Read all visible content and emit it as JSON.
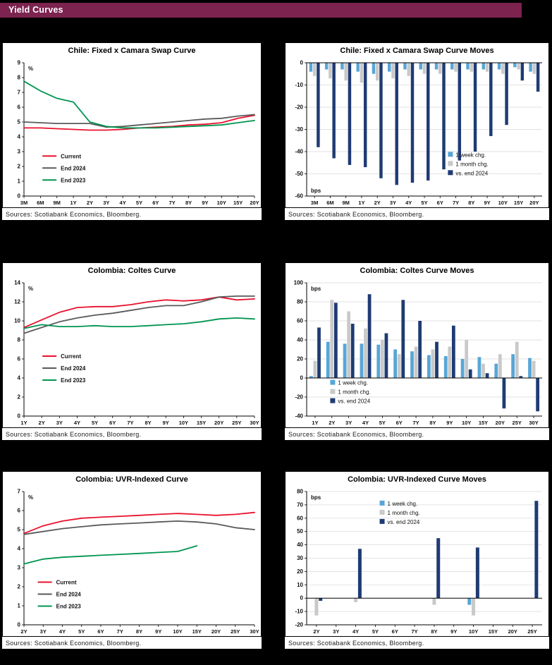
{
  "page": {
    "title": "Yield Curves",
    "header_bg": "#7c2350",
    "page_bg": "#000000"
  },
  "sources_label": "Sources: Scotiabank Economics, Bloomberg.",
  "colors": {
    "current": "#e8112d",
    "end2024": "#595a5c",
    "end2023": "#009450",
    "week": "#58a6d6",
    "month": "#c9c9c9",
    "vs_end2024": "#1f3b73",
    "grid": "#d9d9d9"
  },
  "chart_data": [
    {
      "type": "line",
      "title": "Chile: Fixed x Camara Swap Curve",
      "unit": "%",
      "unit_pos": "top",
      "ylim": [
        0,
        9
      ],
      "ystep": 1,
      "categories": [
        "3M",
        "6M",
        "9M",
        "1Y",
        "2Y",
        "3Y",
        "4Y",
        "5Y",
        "6Y",
        "7Y",
        "8Y",
        "9Y",
        "10Y",
        "15Y",
        "20Y"
      ],
      "legend": {
        "x": 0.08,
        "y": 0.7
      },
      "series": [
        {
          "name": "Current",
          "color_key": "current",
          "values": [
            4.6,
            4.6,
            4.55,
            4.5,
            4.45,
            4.45,
            4.5,
            4.6,
            4.65,
            4.7,
            4.8,
            4.85,
            4.95,
            5.25,
            5.45
          ]
        },
        {
          "name": "End 2024",
          "color_key": "end2024",
          "values": [
            5.0,
            4.95,
            4.9,
            4.9,
            4.9,
            4.65,
            4.7,
            4.8,
            4.9,
            5.0,
            5.1,
            5.2,
            5.25,
            5.4,
            5.5
          ]
        },
        {
          "name": "End 2023",
          "color_key": "end2023",
          "values": [
            7.75,
            7.1,
            6.6,
            6.35,
            5.0,
            4.7,
            4.6,
            4.6,
            4.6,
            4.65,
            4.7,
            4.75,
            4.8,
            4.95,
            5.1
          ]
        }
      ]
    },
    {
      "type": "bar",
      "title": "Chile: Fixed x Camara Swap Curve Moves",
      "unit": "bps",
      "unit_pos": "bottom",
      "ylim": [
        -60,
        0
      ],
      "ystep": 10,
      "categories": [
        "3M",
        "6M",
        "9M",
        "1Y",
        "2Y",
        "3Y",
        "4Y",
        "5Y",
        "6Y",
        "7Y",
        "8Y",
        "9Y",
        "10Y",
        "15Y",
        "20Y"
      ],
      "legend": {
        "x": 0.6,
        "y": 0.7
      },
      "series": [
        {
          "name": "1 week chg.",
          "color_key": "week",
          "values": [
            -4,
            -3,
            -3,
            -4,
            -5,
            -4,
            -3,
            -3,
            -3,
            -3,
            -3,
            -3,
            -3,
            -2,
            -4
          ]
        },
        {
          "name": "1 month chg.",
          "color_key": "month",
          "values": [
            -6,
            -7,
            -8,
            -9,
            -8,
            -7,
            -6,
            -5,
            -5,
            -4,
            -4,
            -4,
            -5,
            -3,
            -5
          ]
        },
        {
          "name": "vs. end 2024",
          "color_key": "vs_end2024",
          "values": [
            -38,
            -43,
            -46,
            -47,
            -52,
            -55,
            -54,
            -53,
            -48,
            -44,
            -40,
            -33,
            -28,
            -8,
            -13
          ]
        }
      ]
    },
    {
      "type": "line",
      "title": "Colombia: Coltes Curve",
      "unit": "%",
      "unit_pos": "top",
      "ylim": [
        0,
        14
      ],
      "ystep": 2,
      "categories": [
        "1Y",
        "2Y",
        "3Y",
        "4Y",
        "5Y",
        "6Y",
        "7Y",
        "8Y",
        "9Y",
        "10Y",
        "15Y",
        "20Y",
        "25Y",
        "30Y"
      ],
      "legend": {
        "x": 0.08,
        "y": 0.55
      },
      "series": [
        {
          "name": "Current",
          "color_key": "current",
          "values": [
            9.3,
            10.1,
            10.9,
            11.4,
            11.5,
            11.5,
            11.7,
            12.0,
            12.2,
            12.1,
            12.2,
            12.5,
            12.2,
            12.3
          ]
        },
        {
          "name": "End 2024",
          "color_key": "end2024",
          "values": [
            8.7,
            9.3,
            9.9,
            10.3,
            10.6,
            10.8,
            11.1,
            11.4,
            11.6,
            11.6,
            12.0,
            12.5,
            12.6,
            12.6
          ]
        },
        {
          "name": "End 2023",
          "color_key": "end2023",
          "values": [
            9.2,
            9.6,
            9.4,
            9.4,
            9.5,
            9.4,
            9.4,
            9.5,
            9.6,
            9.7,
            9.9,
            10.2,
            10.3,
            10.2
          ]
        }
      ]
    },
    {
      "type": "bar",
      "title": "Colombia: Coltes Curve Moves",
      "unit": "bps",
      "unit_pos": "top",
      "ylim": [
        -40,
        100
      ],
      "ystep": 20,
      "categories": [
        "1Y",
        "2Y",
        "3Y",
        "4Y",
        "5Y",
        "6Y",
        "7Y",
        "8Y",
        "9Y",
        "10Y",
        "15Y",
        "20Y",
        "25Y",
        "30Y"
      ],
      "legend": {
        "x": 0.1,
        "y": 0.76
      },
      "series": [
        {
          "name": "1 week chg.",
          "color_key": "week",
          "values": [
            2,
            38,
            36,
            36,
            35,
            30,
            28,
            24,
            23,
            20,
            22,
            15,
            25,
            21
          ]
        },
        {
          "name": "1 month chg.",
          "color_key": "month",
          "values": [
            18,
            82,
            70,
            52,
            40,
            25,
            33,
            30,
            33,
            40,
            15,
            25,
            38,
            18
          ]
        },
        {
          "name": "vs. end 2024",
          "color_key": "vs_end2024",
          "values": [
            53,
            79,
            57,
            88,
            47,
            82,
            60,
            38,
            55,
            9,
            5,
            -32,
            2,
            -35
          ]
        }
      ]
    },
    {
      "type": "line",
      "title": "Colombia: UVR-Indexed Curve",
      "unit": "%",
      "unit_pos": "top",
      "ylim": [
        0,
        7
      ],
      "ystep": 1,
      "categories": [
        "2Y",
        "3Y",
        "4Y",
        "5Y",
        "6Y",
        "7Y",
        "8Y",
        "9Y",
        "10Y",
        "15Y",
        "20Y",
        "25Y",
        "30Y"
      ],
      "legend": {
        "x": 0.06,
        "y": 0.68
      },
      "series": [
        {
          "name": "Current",
          "color_key": "current",
          "values": [
            4.8,
            5.2,
            5.45,
            5.6,
            5.65,
            5.7,
            5.75,
            5.8,
            5.85,
            5.8,
            5.75,
            5.8,
            5.9
          ]
        },
        {
          "name": "End 2024",
          "color_key": "end2024",
          "values": [
            4.75,
            4.9,
            5.05,
            5.15,
            5.25,
            5.3,
            5.35,
            5.4,
            5.45,
            5.4,
            5.3,
            5.1,
            5.0
          ]
        },
        {
          "name": "End 2023",
          "color_key": "end2023",
          "values": [
            3.2,
            3.45,
            3.55,
            3.6,
            3.65,
            3.7,
            3.75,
            3.8,
            3.85,
            4.15,
            null,
            null,
            null
          ]
        }
      ]
    },
    {
      "type": "bar",
      "title": "Colombia: UVR-Indexed Curve Moves",
      "unit": "bps",
      "unit_pos": "top",
      "ylim": [
        -20,
        80
      ],
      "ystep": 10,
      "categories": [
        "2Y",
        "3Y",
        "4Y",
        "5Y",
        "6Y",
        "7Y",
        "8Y",
        "9Y",
        "10Y",
        "15Y",
        "20Y",
        "25Y"
      ],
      "legend": {
        "x": 0.31,
        "y": 0.1
      },
      "series": [
        {
          "name": "1 week chg.",
          "color_key": "week",
          "values": [
            0,
            0,
            0,
            0,
            0,
            0,
            0,
            0,
            -5,
            0,
            0,
            0
          ]
        },
        {
          "name": "1 month chg.",
          "color_key": "month",
          "values": [
            -13,
            0,
            -3,
            0,
            0,
            0,
            -5,
            0,
            -13,
            0,
            0,
            0
          ]
        },
        {
          "name": "vs. end 2024",
          "color_key": "vs_end2024",
          "values": [
            -2,
            0,
            37,
            0,
            0,
            0,
            45,
            0,
            38,
            0,
            0,
            73
          ]
        }
      ]
    }
  ]
}
